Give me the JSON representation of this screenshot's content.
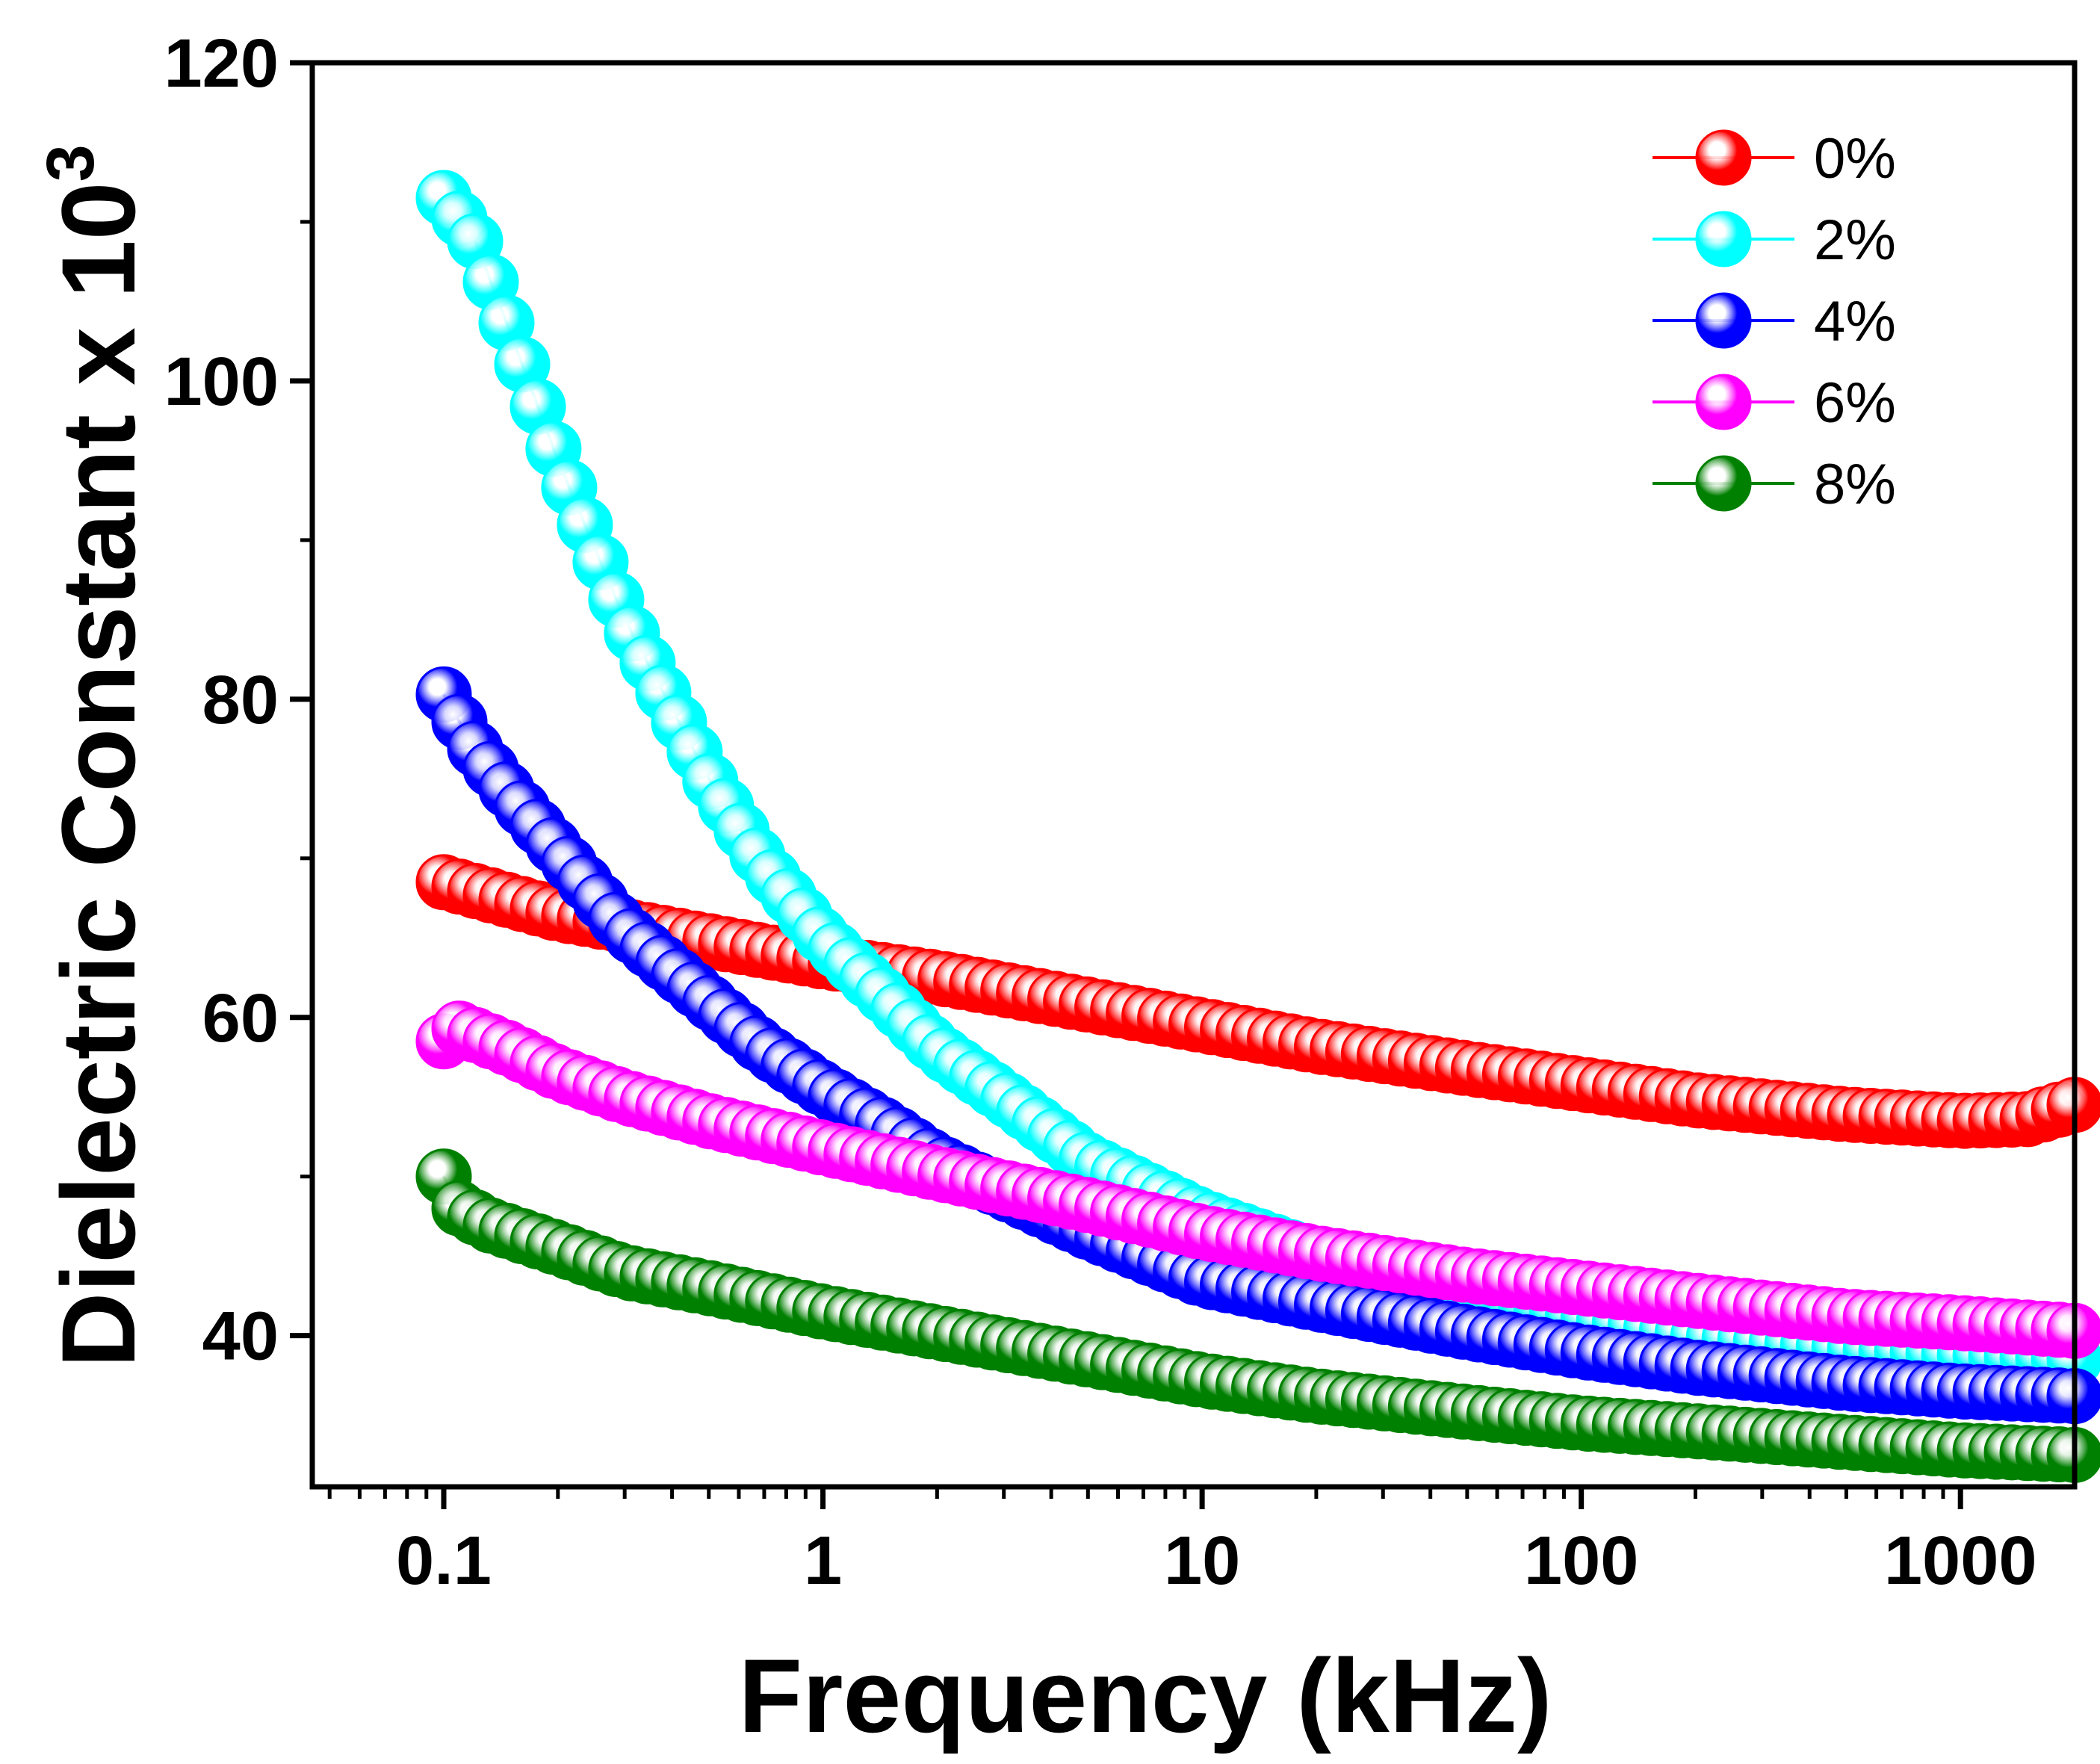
{
  "chart_data": {
    "type": "scatter",
    "xlabel": "Frequency (kHz)",
    "ylabel_main": "Dielectric Constant x 10",
    "ylabel_superscript": "3",
    "x_scale": "log",
    "xlim": [
      0.045,
      2000
    ],
    "ylim": [
      30.5,
      120
    ],
    "x_ticks": [
      {
        "value": 0.1,
        "label": "0.1"
      },
      {
        "value": 1,
        "label": "1"
      },
      {
        "value": 10,
        "label": "10"
      },
      {
        "value": 100,
        "label": "100"
      },
      {
        "value": 1000,
        "label": "1000"
      }
    ],
    "y_ticks": [
      {
        "value": 40,
        "label": "40"
      },
      {
        "value": 60,
        "label": "60"
      },
      {
        "value": 80,
        "label": "80"
      },
      {
        "value": 100,
        "label": "100"
      },
      {
        "value": 120,
        "label": "120"
      }
    ],
    "y_minor_ticks": [
      50,
      70,
      90,
      110
    ],
    "grid": false,
    "legend_position": "top-right",
    "series": [
      {
        "name": "0%",
        "color": "#ff0000",
        "points": [
          [
            0.1,
            68.5
          ],
          [
            0.2,
            66.5
          ],
          [
            0.5,
            64.8
          ],
          [
            1,
            63.5
          ],
          [
            2,
            62.5
          ],
          [
            5,
            60.8
          ],
          [
            10,
            59.5
          ],
          [
            20,
            58.2
          ],
          [
            50,
            56.8
          ],
          [
            100,
            55.8
          ],
          [
            200,
            54.8
          ],
          [
            500,
            53.9
          ],
          [
            1000,
            53.5
          ],
          [
            1500,
            53.6
          ],
          [
            2000,
            54.5
          ]
        ]
      },
      {
        "name": "2%",
        "color": "#00ffff",
        "points": [
          [
            0.1,
            111.5
          ],
          [
            0.12,
            109
          ],
          [
            0.15,
            103
          ],
          [
            0.2,
            95
          ],
          [
            0.3,
            85
          ],
          [
            0.5,
            75
          ],
          [
            0.7,
            69.5
          ],
          [
            1,
            65
          ],
          [
            1.5,
            61
          ],
          [
            2,
            58
          ],
          [
            3,
            55
          ],
          [
            5,
            51
          ],
          [
            10,
            47.5
          ],
          [
            20,
            45
          ],
          [
            50,
            42.8
          ],
          [
            100,
            41.2
          ],
          [
            200,
            40
          ],
          [
            500,
            39.2
          ],
          [
            1000,
            38.8
          ],
          [
            2000,
            38.5
          ]
        ]
      },
      {
        "name": "4%",
        "color": "#0000ff",
        "points": [
          [
            0.1,
            80.3
          ],
          [
            0.12,
            77
          ],
          [
            0.15,
            74
          ],
          [
            0.2,
            70.5
          ],
          [
            0.3,
            65.5
          ],
          [
            0.5,
            61
          ],
          [
            0.7,
            58
          ],
          [
            1,
            55.5
          ],
          [
            1.5,
            53
          ],
          [
            2,
            51
          ],
          [
            3,
            49
          ],
          [
            5,
            46.5
          ],
          [
            10,
            43.5
          ],
          [
            20,
            42
          ],
          [
            50,
            40.2
          ],
          [
            100,
            39
          ],
          [
            200,
            38
          ],
          [
            500,
            37
          ],
          [
            1000,
            36.5
          ],
          [
            2000,
            36.2
          ]
        ]
      },
      {
        "name": "6%",
        "color": "#ff00ff",
        "points": [
          [
            0.1,
            58.5
          ],
          [
            0.11,
            59.3
          ],
          [
            0.15,
            58
          ],
          [
            0.2,
            56.5
          ],
          [
            0.3,
            55
          ],
          [
            0.5,
            53.5
          ],
          [
            1,
            51.8
          ],
          [
            2,
            50.2
          ],
          [
            5,
            48.2
          ],
          [
            10,
            46.5
          ],
          [
            20,
            45.2
          ],
          [
            50,
            43.8
          ],
          [
            100,
            43
          ],
          [
            200,
            42.2
          ],
          [
            500,
            41.2
          ],
          [
            1000,
            40.8
          ],
          [
            2000,
            40.3
          ]
        ]
      },
      {
        "name": "8%",
        "color": "#008000",
        "points": [
          [
            0.1,
            50
          ],
          [
            0.11,
            48
          ],
          [
            0.13,
            47
          ],
          [
            0.15,
            46.5
          ],
          [
            0.2,
            45.5
          ],
          [
            0.3,
            44
          ],
          [
            0.5,
            43
          ],
          [
            1,
            41.5
          ],
          [
            2,
            40.2
          ],
          [
            5,
            38.5
          ],
          [
            10,
            37.2
          ],
          [
            20,
            36.2
          ],
          [
            50,
            35.2
          ],
          [
            100,
            34.5
          ],
          [
            200,
            34
          ],
          [
            500,
            33.3
          ],
          [
            1000,
            32.8
          ],
          [
            2000,
            32.5
          ]
        ]
      }
    ]
  }
}
